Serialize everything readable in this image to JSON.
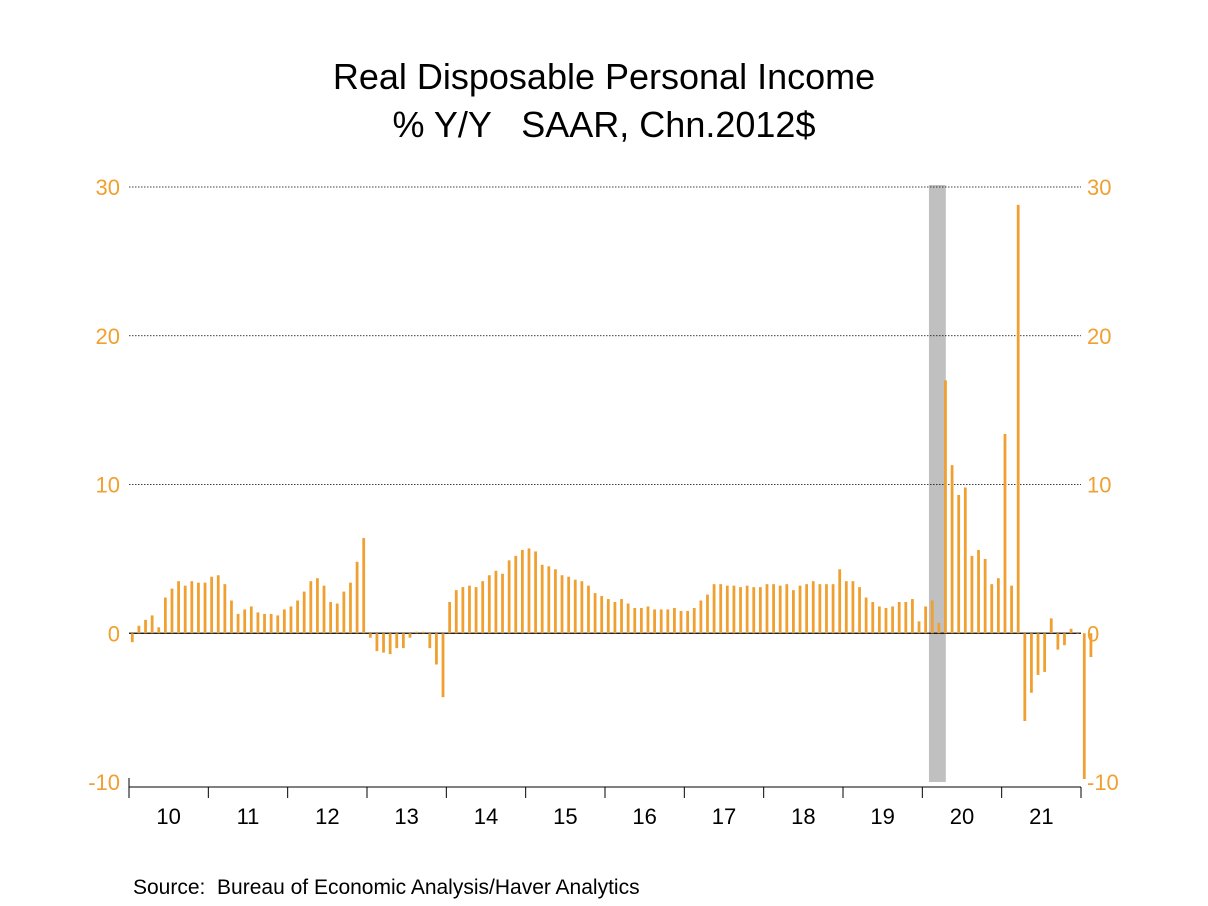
{
  "title": "Real Disposable Personal Income",
  "subtitle": "% Y/Y   SAAR, Chn.2012$",
  "source": "Source:  Bureau of Economic Analysis/Haver Analytics",
  "colors": {
    "bars": "#f0a030",
    "axis_labels": "#f0a030",
    "recession": "#c0c0c0",
    "grid": "#000000"
  },
  "chart_data": {
    "type": "bar",
    "frequency": "monthly",
    "start_period": "2010-01",
    "xlabel": "",
    "ylabel": "",
    "ylim": [
      -10,
      30
    ],
    "y_ticks": [
      -10,
      0,
      10,
      20,
      30
    ],
    "y_tick_labels": [
      "-10",
      "0",
      "10",
      "20",
      "30"
    ],
    "y_axis_sides": [
      "left",
      "right"
    ],
    "grid": true,
    "x_tick_labels": [
      "10",
      "11",
      "12",
      "13",
      "14",
      "15",
      "16",
      "17",
      "18",
      "19",
      "20",
      "21"
    ],
    "recession_shading": {
      "start": "2020-02",
      "end": "2020-04"
    },
    "values": [
      -0.6,
      0.5,
      0.9,
      1.2,
      0.4,
      2.4,
      3.0,
      3.5,
      3.2,
      3.5,
      3.4,
      3.4,
      3.8,
      3.9,
      3.3,
      2.2,
      1.3,
      1.6,
      1.8,
      1.4,
      1.3,
      1.3,
      1.2,
      1.6,
      1.8,
      2.2,
      2.8,
      3.5,
      3.7,
      3.2,
      2.1,
      2.0,
      2.8,
      3.4,
      4.8,
      6.4,
      -0.3,
      -1.2,
      -1.3,
      -1.4,
      -1.0,
      -1.0,
      -0.3,
      0.1,
      0.1,
      -1.0,
      -2.1,
      -4.3,
      2.1,
      2.9,
      3.1,
      3.2,
      3.1,
      3.5,
      3.9,
      4.2,
      4.0,
      4.9,
      5.2,
      5.6,
      5.7,
      5.5,
      4.6,
      4.5,
      4.3,
      3.9,
      3.8,
      3.6,
      3.5,
      3.2,
      2.7,
      2.5,
      2.3,
      2.1,
      2.3,
      2.0,
      1.7,
      1.7,
      1.8,
      1.6,
      1.6,
      1.6,
      1.7,
      1.5,
      1.5,
      1.7,
      2.2,
      2.6,
      3.3,
      3.3,
      3.2,
      3.2,
      3.1,
      3.2,
      3.1,
      3.1,
      3.3,
      3.3,
      3.2,
      3.3,
      2.9,
      3.2,
      3.3,
      3.5,
      3.3,
      3.3,
      3.3,
      4.3,
      3.5,
      3.5,
      3.1,
      2.4,
      2.1,
      1.8,
      1.7,
      1.8,
      2.1,
      2.1,
      2.3,
      0.8,
      1.8,
      2.2,
      0.7,
      17.0,
      11.3,
      9.3,
      9.8,
      5.2,
      5.6,
      5.0,
      3.3,
      3.7,
      13.4,
      3.2,
      28.8,
      -5.9,
      -4.0,
      -2.8,
      -2.6,
      1.0,
      -1.1,
      -0.8,
      0.3,
      0.0,
      -9.8,
      -1.6
    ]
  }
}
